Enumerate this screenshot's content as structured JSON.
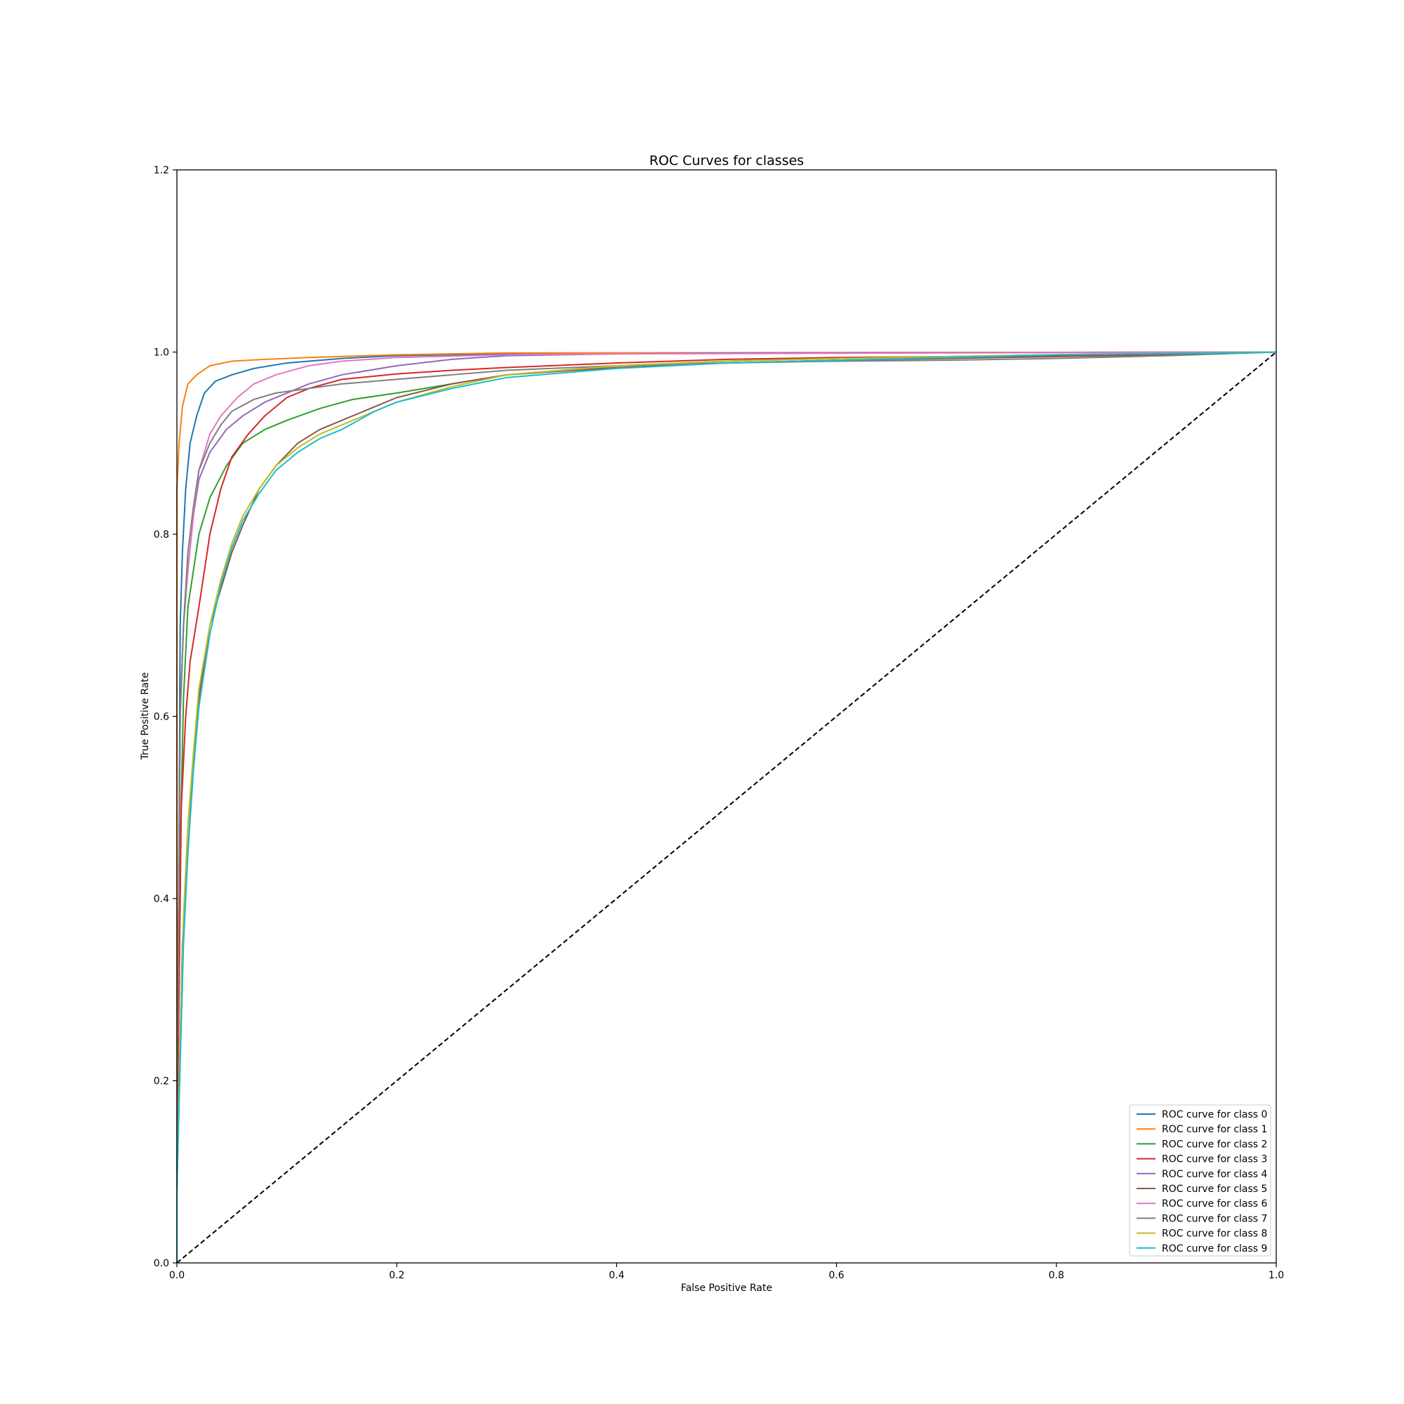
{
  "chart_data": {
    "type": "line",
    "title": "ROC Curves for classes",
    "xlabel": "False Positive Rate",
    "ylabel": "True Positive Rate",
    "xlim": [
      0.0,
      1.0
    ],
    "ylim": [
      0.0,
      1.2
    ],
    "x_ticks": [
      0.0,
      0.2,
      0.4,
      0.6,
      0.8,
      1.0
    ],
    "y_ticks": [
      0.0,
      0.2,
      0.4,
      0.6,
      0.8,
      1.0,
      1.2
    ],
    "x_tick_labels": [
      "0.0",
      "0.2",
      "0.4",
      "0.6",
      "0.8",
      "1.0"
    ],
    "y_tick_labels": [
      "0.0",
      "0.2",
      "0.4",
      "0.6",
      "0.8",
      "1.0",
      "1.2"
    ],
    "grid": false,
    "legend_position": "lower-right",
    "reference_line": {
      "style": "dashed",
      "color": "#000000",
      "points": [
        [
          0,
          0
        ],
        [
          1,
          1
        ]
      ]
    },
    "series": [
      {
        "name": "ROC curve for class 0",
        "color": "#1f77b4",
        "points": [
          [
            0,
            0
          ],
          [
            0,
            0.08
          ],
          [
            0.003,
            0.7
          ],
          [
            0.005,
            0.78
          ],
          [
            0.008,
            0.85
          ],
          [
            0.012,
            0.9
          ],
          [
            0.018,
            0.93
          ],
          [
            0.025,
            0.955
          ],
          [
            0.035,
            0.968
          ],
          [
            0.05,
            0.975
          ],
          [
            0.07,
            0.982
          ],
          [
            0.1,
            0.988
          ],
          [
            0.15,
            0.993
          ],
          [
            0.2,
            0.996
          ],
          [
            0.3,
            0.998
          ],
          [
            0.5,
            0.999
          ],
          [
            1,
            1
          ]
        ]
      },
      {
        "name": "ROC curve for class 1",
        "color": "#ff7f0e",
        "points": [
          [
            0,
            0
          ],
          [
            0,
            0.85
          ],
          [
            0.002,
            0.9
          ],
          [
            0.005,
            0.94
          ],
          [
            0.01,
            0.965
          ],
          [
            0.018,
            0.975
          ],
          [
            0.03,
            0.985
          ],
          [
            0.05,
            0.99
          ],
          [
            0.08,
            0.992
          ],
          [
            0.12,
            0.994
          ],
          [
            0.2,
            0.997
          ],
          [
            0.3,
            0.999
          ],
          [
            1,
            1
          ]
        ]
      },
      {
        "name": "ROC curve for class 2",
        "color": "#2ca02c",
        "points": [
          [
            0,
            0
          ],
          [
            0,
            0.1
          ],
          [
            0.003,
            0.45
          ],
          [
            0.006,
            0.62
          ],
          [
            0.01,
            0.72
          ],
          [
            0.02,
            0.8
          ],
          [
            0.03,
            0.84
          ],
          [
            0.045,
            0.875
          ],
          [
            0.06,
            0.9
          ],
          [
            0.08,
            0.915
          ],
          [
            0.1,
            0.925
          ],
          [
            0.13,
            0.938
          ],
          [
            0.16,
            0.948
          ],
          [
            0.2,
            0.955
          ],
          [
            0.25,
            0.965
          ],
          [
            0.3,
            0.975
          ],
          [
            0.4,
            0.985
          ],
          [
            0.5,
            0.99
          ],
          [
            0.6,
            0.993
          ],
          [
            0.8,
            0.997
          ],
          [
            1,
            1
          ]
        ]
      },
      {
        "name": "ROC curve for class 3",
        "color": "#d62728",
        "points": [
          [
            0,
            0
          ],
          [
            0,
            0.1
          ],
          [
            0.004,
            0.5
          ],
          [
            0.008,
            0.6
          ],
          [
            0.012,
            0.66
          ],
          [
            0.02,
            0.72
          ],
          [
            0.03,
            0.8
          ],
          [
            0.04,
            0.85
          ],
          [
            0.05,
            0.885
          ],
          [
            0.065,
            0.91
          ],
          [
            0.08,
            0.93
          ],
          [
            0.1,
            0.95
          ],
          [
            0.12,
            0.96
          ],
          [
            0.15,
            0.97
          ],
          [
            0.2,
            0.976
          ],
          [
            0.25,
            0.98
          ],
          [
            0.3,
            0.983
          ],
          [
            0.4,
            0.988
          ],
          [
            0.5,
            0.992
          ],
          [
            0.6,
            0.994
          ],
          [
            0.7,
            0.995
          ],
          [
            0.8,
            0.996
          ],
          [
            0.9,
            0.997
          ],
          [
            1,
            1
          ]
        ]
      },
      {
        "name": "ROC curve for class 4",
        "color": "#9467bd",
        "points": [
          [
            0,
            0
          ],
          [
            0,
            0.15
          ],
          [
            0.003,
            0.6
          ],
          [
            0.006,
            0.7
          ],
          [
            0.01,
            0.76
          ],
          [
            0.015,
            0.82
          ],
          [
            0.02,
            0.86
          ],
          [
            0.03,
            0.89
          ],
          [
            0.045,
            0.915
          ],
          [
            0.06,
            0.93
          ],
          [
            0.08,
            0.945
          ],
          [
            0.1,
            0.955
          ],
          [
            0.12,
            0.965
          ],
          [
            0.15,
            0.975
          ],
          [
            0.2,
            0.985
          ],
          [
            0.25,
            0.992
          ],
          [
            0.3,
            0.996
          ],
          [
            0.4,
            0.998
          ],
          [
            0.5,
            0.999
          ],
          [
            1,
            1
          ]
        ]
      },
      {
        "name": "ROC curve for class 5",
        "color": "#8c564b",
        "points": [
          [
            0,
            0
          ],
          [
            0,
            0.08
          ],
          [
            0.005,
            0.35
          ],
          [
            0.01,
            0.45
          ],
          [
            0.015,
            0.55
          ],
          [
            0.02,
            0.62
          ],
          [
            0.03,
            0.7
          ],
          [
            0.04,
            0.74
          ],
          [
            0.05,
            0.78
          ],
          [
            0.06,
            0.81
          ],
          [
            0.075,
            0.85
          ],
          [
            0.09,
            0.875
          ],
          [
            0.11,
            0.9
          ],
          [
            0.13,
            0.915
          ],
          [
            0.15,
            0.925
          ],
          [
            0.18,
            0.94
          ],
          [
            0.2,
            0.95
          ],
          [
            0.25,
            0.965
          ],
          [
            0.3,
            0.975
          ],
          [
            0.4,
            0.983
          ],
          [
            0.5,
            0.988
          ],
          [
            0.6,
            0.991
          ],
          [
            0.7,
            0.993
          ],
          [
            0.8,
            0.995
          ],
          [
            0.9,
            0.997
          ],
          [
            1,
            1
          ]
        ]
      },
      {
        "name": "ROC curve for class 6",
        "color": "#e377c2",
        "points": [
          [
            0,
            0
          ],
          [
            0,
            0.15
          ],
          [
            0.003,
            0.6
          ],
          [
            0.006,
            0.7
          ],
          [
            0.01,
            0.76
          ],
          [
            0.015,
            0.82
          ],
          [
            0.02,
            0.87
          ],
          [
            0.03,
            0.91
          ],
          [
            0.04,
            0.93
          ],
          [
            0.055,
            0.95
          ],
          [
            0.07,
            0.965
          ],
          [
            0.09,
            0.975
          ],
          [
            0.12,
            0.985
          ],
          [
            0.15,
            0.99
          ],
          [
            0.2,
            0.994
          ],
          [
            0.3,
            0.997
          ],
          [
            0.4,
            0.998
          ],
          [
            1,
            1
          ]
        ]
      },
      {
        "name": "ROC curve for class 7",
        "color": "#7f7f7f",
        "points": [
          [
            0,
            0
          ],
          [
            0,
            0.15
          ],
          [
            0.003,
            0.6
          ],
          [
            0.006,
            0.7
          ],
          [
            0.01,
            0.78
          ],
          [
            0.015,
            0.83
          ],
          [
            0.02,
            0.87
          ],
          [
            0.03,
            0.9
          ],
          [
            0.04,
            0.92
          ],
          [
            0.05,
            0.935
          ],
          [
            0.07,
            0.948
          ],
          [
            0.09,
            0.955
          ],
          [
            0.12,
            0.96
          ],
          [
            0.15,
            0.965
          ],
          [
            0.2,
            0.97
          ],
          [
            0.25,
            0.975
          ],
          [
            0.3,
            0.98
          ],
          [
            0.4,
            0.985
          ],
          [
            0.5,
            0.988
          ],
          [
            0.6,
            0.99
          ],
          [
            0.7,
            0.991
          ],
          [
            0.8,
            0.993
          ],
          [
            0.9,
            0.996
          ],
          [
            1,
            1
          ]
        ]
      },
      {
        "name": "ROC curve for class 8",
        "color": "#bcbd22",
        "points": [
          [
            0,
            0
          ],
          [
            0,
            0.08
          ],
          [
            0.003,
            0.25
          ],
          [
            0.006,
            0.38
          ],
          [
            0.01,
            0.48
          ],
          [
            0.015,
            0.56
          ],
          [
            0.02,
            0.63
          ],
          [
            0.03,
            0.7
          ],
          [
            0.04,
            0.75
          ],
          [
            0.05,
            0.79
          ],
          [
            0.06,
            0.82
          ],
          [
            0.075,
            0.85
          ],
          [
            0.09,
            0.875
          ],
          [
            0.11,
            0.895
          ],
          [
            0.13,
            0.91
          ],
          [
            0.15,
            0.92
          ],
          [
            0.18,
            0.935
          ],
          [
            0.2,
            0.945
          ],
          [
            0.25,
            0.962
          ],
          [
            0.3,
            0.975
          ],
          [
            0.4,
            0.985
          ],
          [
            0.5,
            0.99
          ],
          [
            0.6,
            0.993
          ],
          [
            0.7,
            0.995
          ],
          [
            0.8,
            0.997
          ],
          [
            1,
            1
          ]
        ]
      },
      {
        "name": "ROC curve for class 9",
        "color": "#17becf",
        "points": [
          [
            0,
            0
          ],
          [
            0,
            0.08
          ],
          [
            0.003,
            0.22
          ],
          [
            0.006,
            0.35
          ],
          [
            0.01,
            0.45
          ],
          [
            0.015,
            0.54
          ],
          [
            0.02,
            0.61
          ],
          [
            0.03,
            0.69
          ],
          [
            0.04,
            0.745
          ],
          [
            0.05,
            0.785
          ],
          [
            0.06,
            0.815
          ],
          [
            0.075,
            0.845
          ],
          [
            0.09,
            0.87
          ],
          [
            0.11,
            0.89
          ],
          [
            0.13,
            0.905
          ],
          [
            0.15,
            0.915
          ],
          [
            0.18,
            0.935
          ],
          [
            0.2,
            0.945
          ],
          [
            0.25,
            0.96
          ],
          [
            0.3,
            0.972
          ],
          [
            0.4,
            0.982
          ],
          [
            0.5,
            0.988
          ],
          [
            0.6,
            0.991
          ],
          [
            0.7,
            0.994
          ],
          [
            0.8,
            0.997
          ],
          [
            1,
            1
          ]
        ]
      }
    ]
  }
}
